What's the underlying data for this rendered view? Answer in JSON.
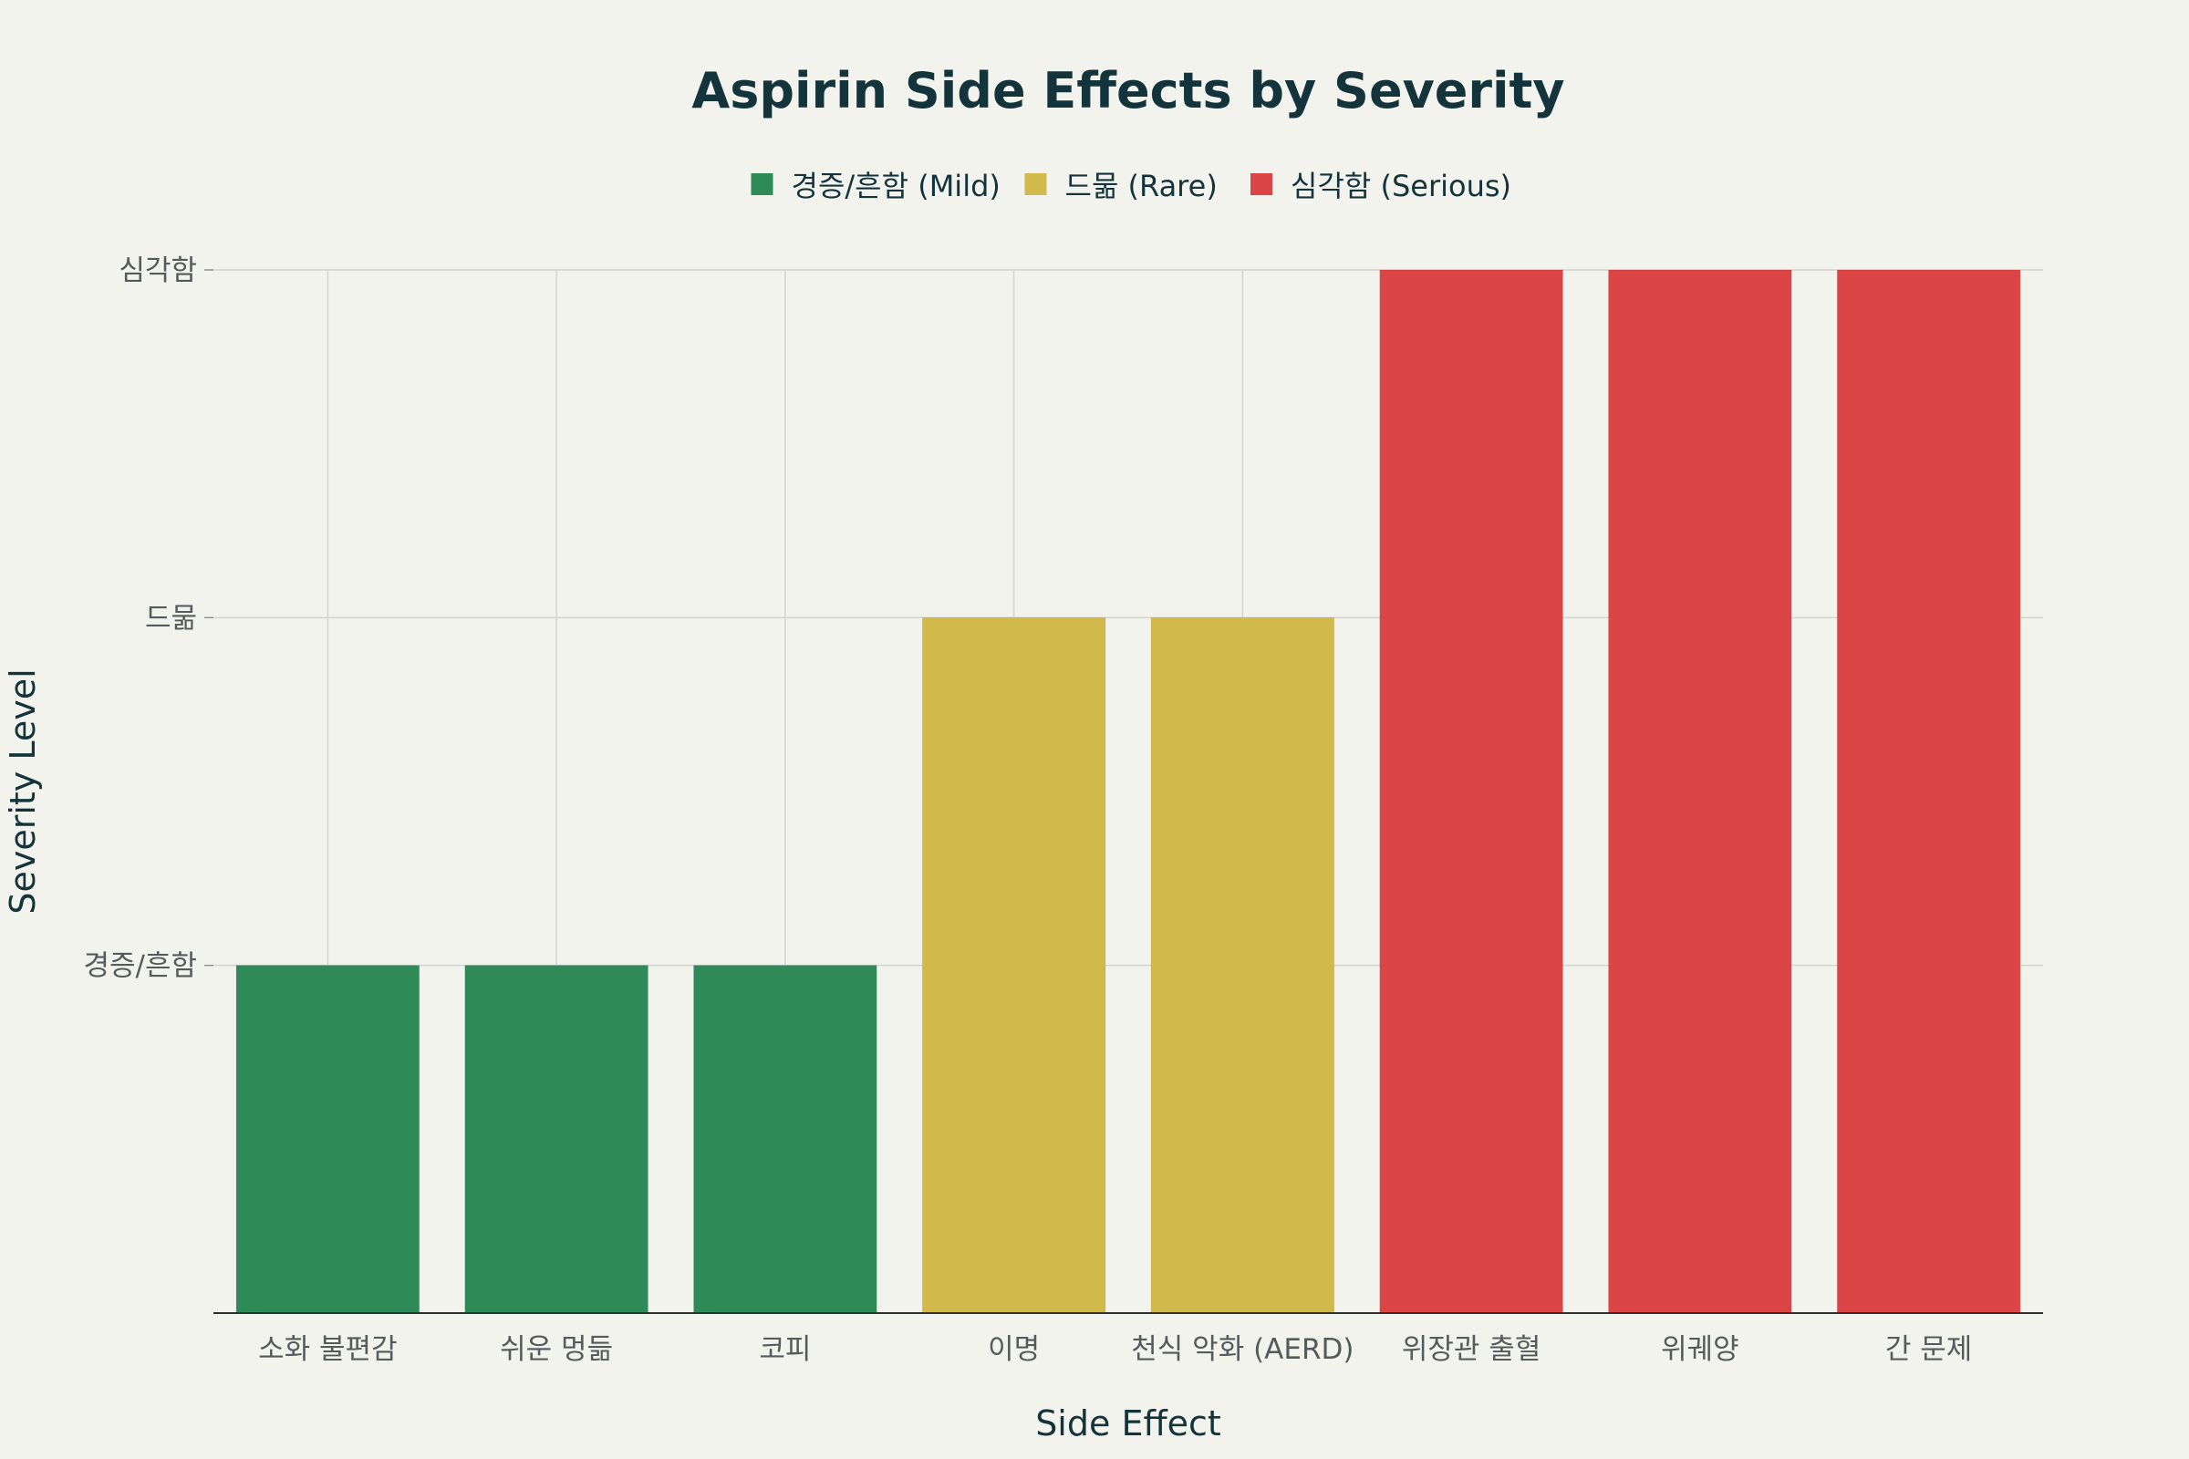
{
  "chart_data": {
    "type": "bar",
    "title": "Aspirin Side Effects by Severity",
    "xlabel": "Side Effect",
    "ylabel": "Severity Level",
    "ylim": [
      0,
      3.0
    ],
    "y_ticks": [
      {
        "value": 1,
        "label": "경증/흔함"
      },
      {
        "value": 2,
        "label": "드묾"
      },
      {
        "value": 3,
        "label": "심각함"
      }
    ],
    "grid": true,
    "legend_position": "top-center",
    "legend": [
      {
        "name": "경증/흔함 (Mild)",
        "color": "#2e8b57"
      },
      {
        "name": "드묾 (Rare)",
        "color": "#d2b94c"
      },
      {
        "name": "심각함 (Serious)",
        "color": "#db4545"
      }
    ],
    "categories": [
      "소화 불편감",
      "쉬운 멍듦",
      "코피",
      "이명",
      "천식 악화 (AERD)",
      "위장관 출혈",
      "위궤양",
      "간 문제"
    ],
    "values": [
      1,
      1,
      1,
      2,
      2,
      3,
      3,
      3
    ],
    "bar_groups": [
      0,
      0,
      0,
      1,
      1,
      2,
      2,
      2
    ]
  }
}
